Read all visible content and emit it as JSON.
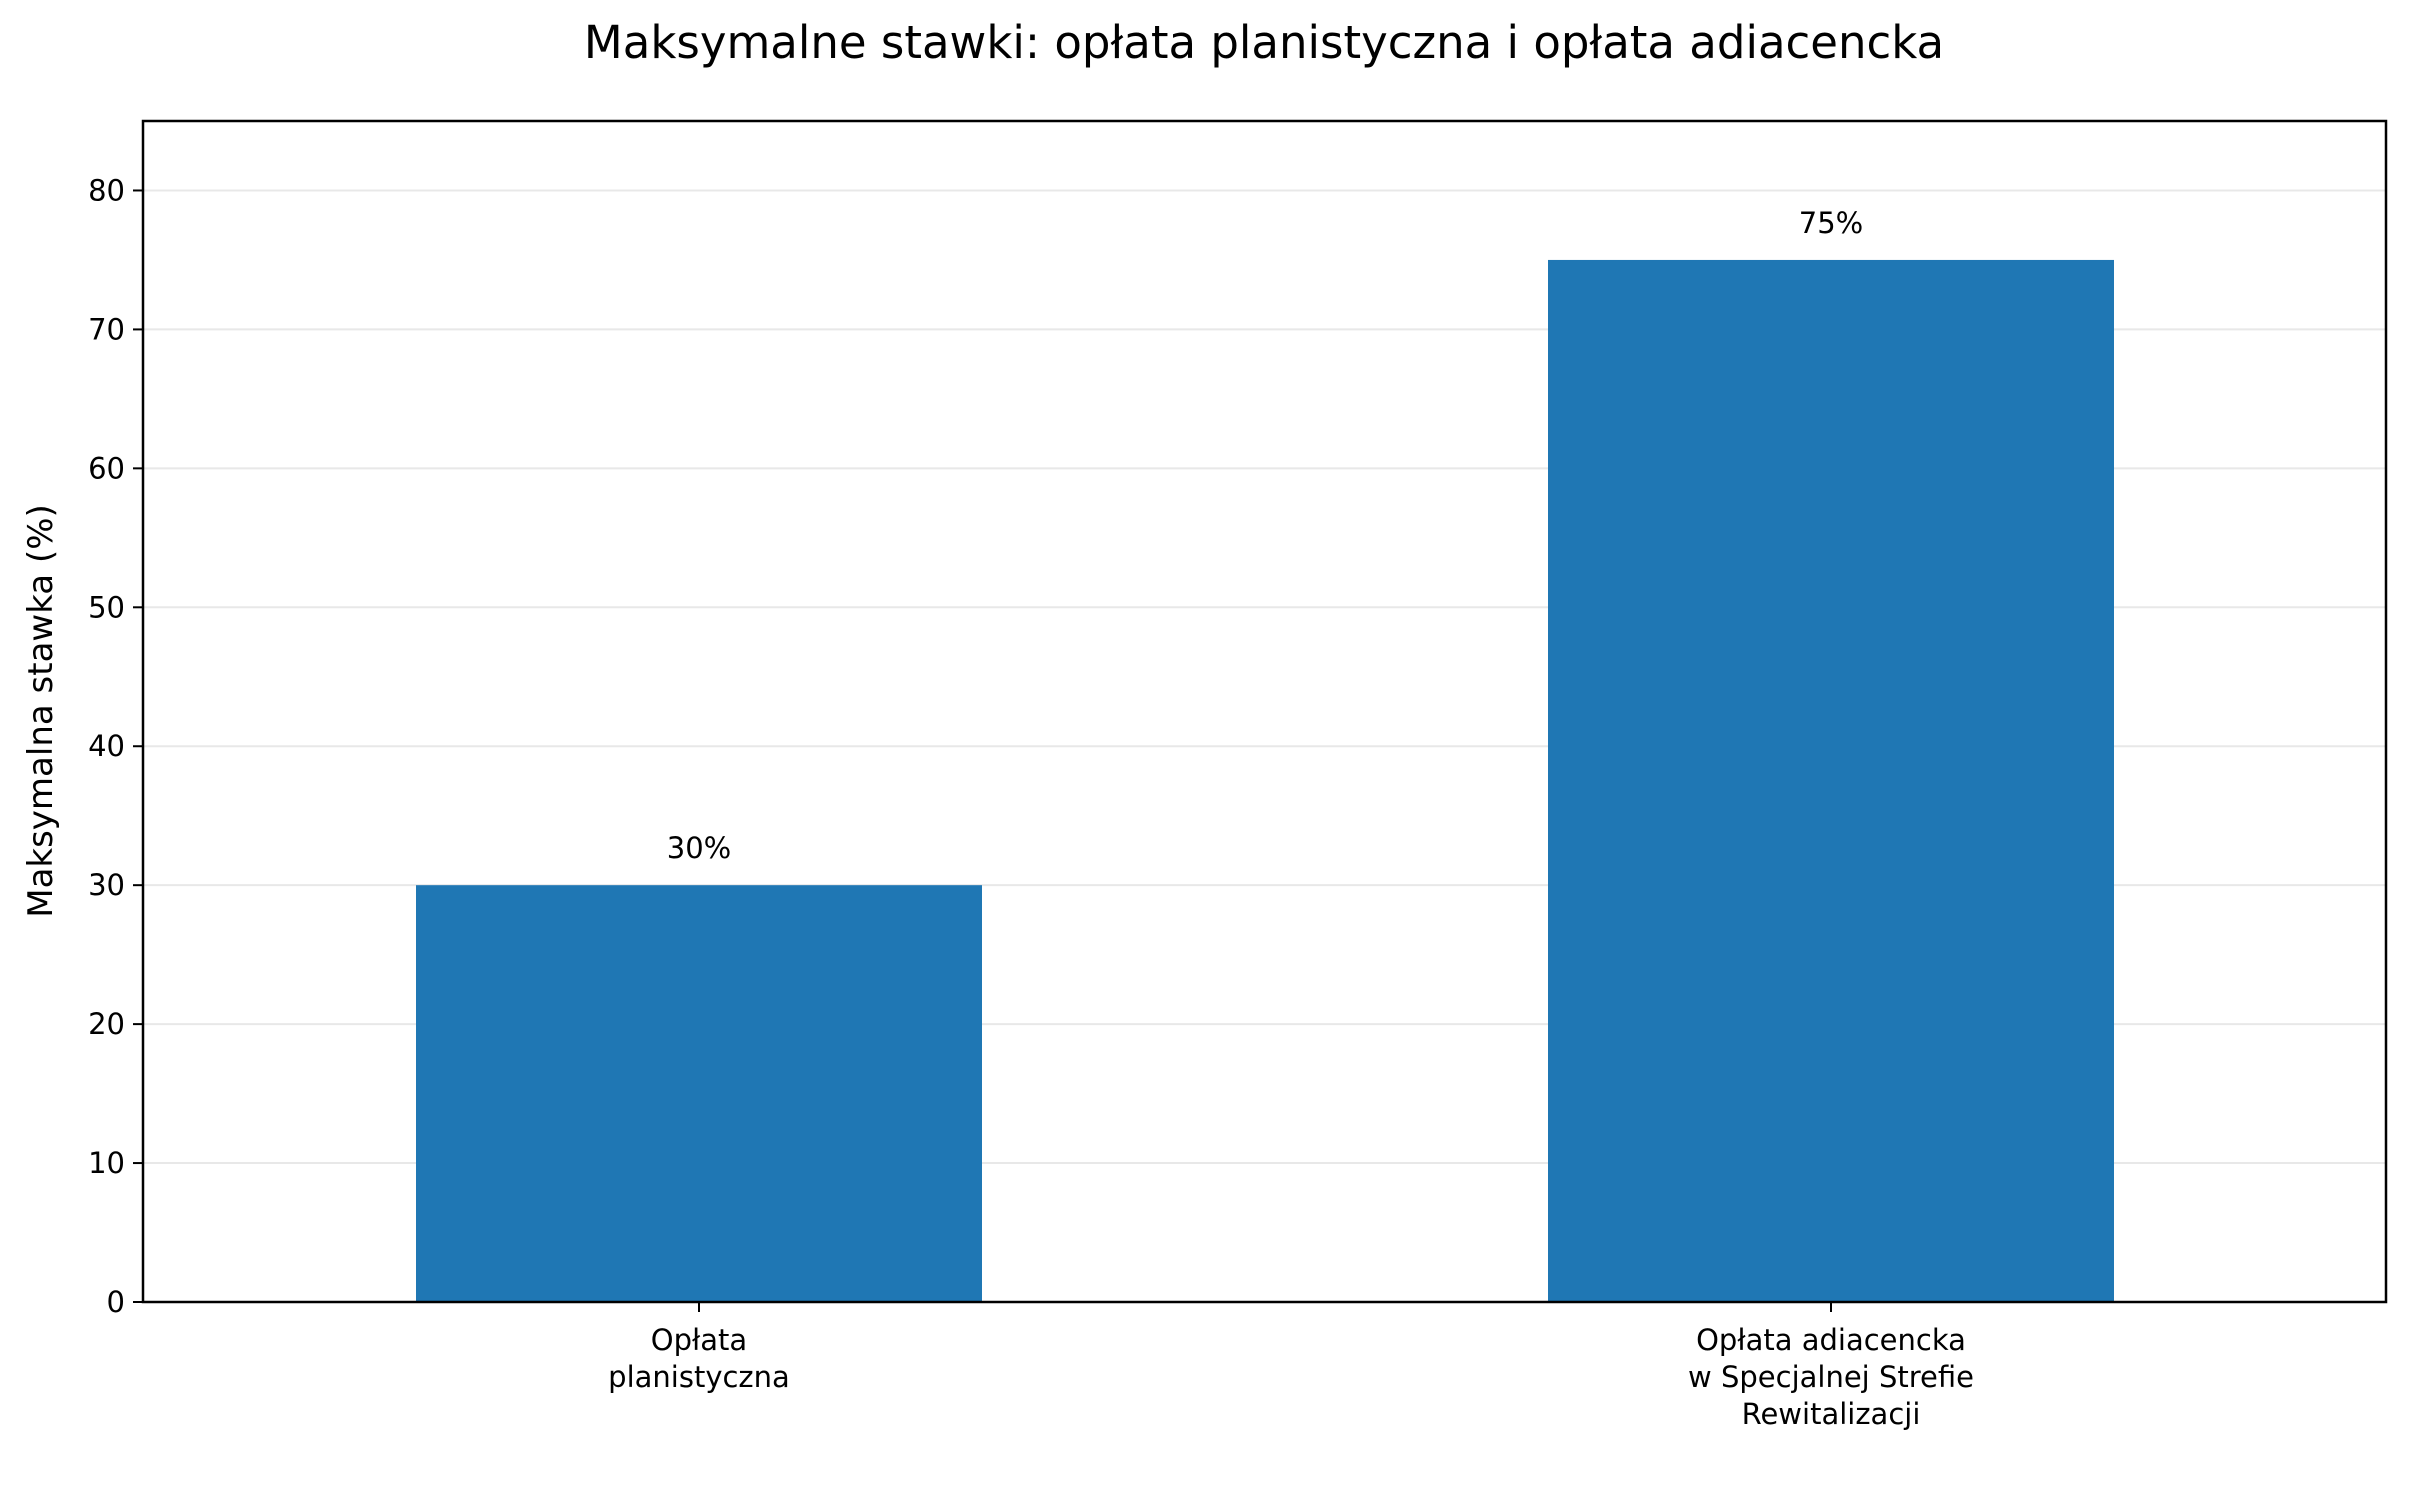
{
  "chart_data": {
    "type": "bar",
    "title": "Maksymalne stawki: opłata planistyczna i opłata adiacencka",
    "xlabel": "",
    "ylabel": "Maksymalna stawka (%)",
    "categories": [
      [
        "Opłata",
        "planistyczna"
      ],
      [
        "Opłata adiacencka",
        "w Specjalnej Strefie",
        "Rewitalizacji"
      ]
    ],
    "values": [
      30,
      75
    ],
    "value_labels": [
      "30%",
      "75%"
    ],
    "ylim": [
      0,
      85
    ],
    "yticks": [
      0,
      10,
      20,
      30,
      40,
      50,
      60,
      70,
      80
    ],
    "grid": true,
    "grid_axis": "y",
    "legend": null,
    "bar_color": "#1f77b4"
  }
}
